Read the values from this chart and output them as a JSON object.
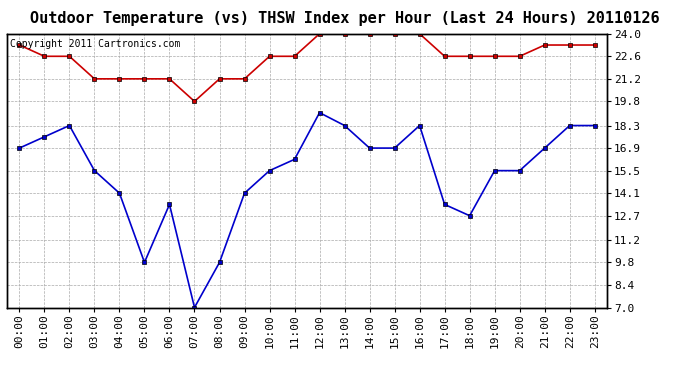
{
  "title": "Outdoor Temperature (vs) THSW Index per Hour (Last 24 Hours) 20110126",
  "copyright": "Copyright 2011 Cartronics.com",
  "hours": [
    "00:00",
    "01:00",
    "02:00",
    "03:00",
    "04:00",
    "05:00",
    "06:00",
    "07:00",
    "08:00",
    "09:00",
    "10:00",
    "11:00",
    "12:00",
    "13:00",
    "14:00",
    "15:00",
    "16:00",
    "17:00",
    "18:00",
    "19:00",
    "20:00",
    "21:00",
    "22:00",
    "23:00"
  ],
  "red_data": [
    23.3,
    22.6,
    22.6,
    21.2,
    21.2,
    21.2,
    21.2,
    19.8,
    21.2,
    21.2,
    22.6,
    22.6,
    24.0,
    24.0,
    24.0,
    24.0,
    24.0,
    22.6,
    22.6,
    22.6,
    22.6,
    23.3,
    23.3,
    23.3
  ],
  "blue_data": [
    16.9,
    17.6,
    18.3,
    15.5,
    14.1,
    9.8,
    13.4,
    7.0,
    9.8,
    14.1,
    15.5,
    16.2,
    19.1,
    18.3,
    16.9,
    16.9,
    18.3,
    13.4,
    12.7,
    15.5,
    15.5,
    16.9,
    18.3,
    18.3
  ],
  "red_color": "#cc0000",
  "blue_color": "#0000cc",
  "marker": "s",
  "marker_size": 3,
  "bg_color": "#ffffff",
  "grid_color": "#aaaaaa",
  "ylim": [
    7.0,
    24.0
  ],
  "yticks": [
    7.0,
    8.4,
    9.8,
    11.2,
    12.7,
    14.1,
    15.5,
    16.9,
    18.3,
    19.8,
    21.2,
    22.6,
    24.0
  ],
  "title_fontsize": 11,
  "copyright_fontsize": 7,
  "tick_fontsize": 8
}
